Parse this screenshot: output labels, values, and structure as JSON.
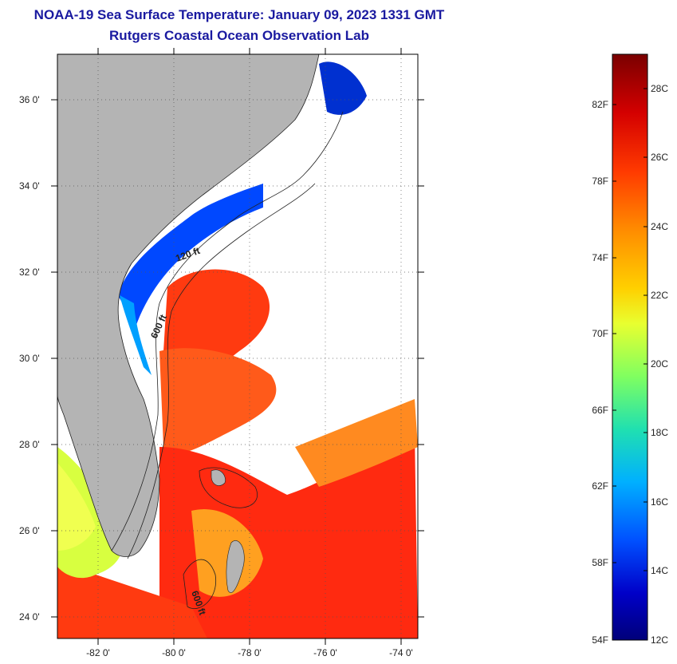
{
  "header": {
    "title": "NOAA-19 Sea Surface Temperature:  January 09, 2023 1331 GMT",
    "subtitle": "Rutgers Coastal Ocean Observation Lab"
  },
  "map": {
    "lon_range": [
      -83,
      -73
    ],
    "lat_range": [
      23,
      37
    ],
    "lon_ticks": [
      "-82 0'",
      "-80 0'",
      "-78 0'",
      "-76 0'",
      "-74 0'"
    ],
    "lat_ticks": [
      "36 0'",
      "34 0'",
      "32 0'",
      "30 0'",
      "28 0'",
      "26 0'",
      "24 0'"
    ],
    "contour_labels": [
      "120 ft",
      "600 ft",
      "600 ft"
    ],
    "colors": {
      "land": "#b4b4b4",
      "cloud": "#ffffff",
      "frame": "#000000"
    }
  },
  "colorbar": {
    "f_labels": [
      "82F",
      "78F",
      "74F",
      "70F",
      "66F",
      "62F",
      "58F",
      "54F"
    ],
    "c_labels": [
      "28C",
      "26C",
      "24C",
      "22C",
      "20C",
      "18C",
      "16C",
      "14C",
      "12C"
    ],
    "gradient": [
      "#7a0000",
      "#d40000",
      "#ff3a00",
      "#ff8c00",
      "#ffd000",
      "#e8ff30",
      "#80ff60",
      "#20e0b0",
      "#00b0ff",
      "#0050ff",
      "#0000c8",
      "#00007a"
    ]
  }
}
